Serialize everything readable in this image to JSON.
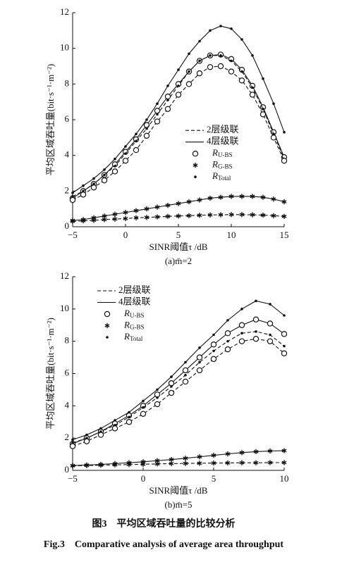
{
  "chart_data": [
    {
      "type": "line",
      "subtitle": "(a)m̄=2",
      "xlabel": "SINR阈值τ /dB",
      "ylabel": "平均区域吞吐量(bit·s⁻¹·m⁻²)",
      "x": [
        -5,
        -4,
        -3,
        -2,
        -1,
        0,
        1,
        2,
        3,
        4,
        5,
        6,
        7,
        8,
        9,
        10,
        11,
        12,
        13,
        14,
        15
      ],
      "xlim": [
        -5,
        15
      ],
      "xticks": [
        {
          "value": -5,
          "label": "−5"
        },
        0,
        5,
        10,
        15
      ],
      "ylim": [
        0,
        12
      ],
      "yticks": [
        0,
        2,
        4,
        6,
        8,
        10,
        12
      ],
      "legend_position": "center-right",
      "legend": [
        {
          "label": "2层级联",
          "linestyle": "dashed"
        },
        {
          "label": "4层级联",
          "linestyle": "solid"
        },
        {
          "label": "R",
          "subscript": "U-BS",
          "marker": "circle"
        },
        {
          "label": "R",
          "subscript": "G-BS",
          "marker": "star"
        },
        {
          "label": "R",
          "subscript": "Total",
          "marker": "dot"
        }
      ],
      "series": [
        {
          "linestyle": "solid",
          "marker": "dot",
          "color": "#111",
          "values": [
            1.9,
            2.3,
            2.7,
            3.2,
            3.8,
            4.5,
            5.2,
            6.0,
            6.9,
            7.9,
            8.8,
            9.7,
            10.4,
            11.0,
            11.25,
            11.1,
            10.5,
            9.6,
            8.3,
            6.9,
            5.3
          ]
        },
        {
          "linestyle": "solid",
          "marker": "circle",
          "color": "#111",
          "values": [
            1.6,
            2.0,
            2.4,
            2.9,
            3.5,
            4.2,
            4.9,
            5.7,
            6.5,
            7.3,
            8.0,
            8.7,
            9.3,
            9.6,
            9.65,
            9.4,
            8.8,
            7.9,
            6.7,
            5.3,
            3.9
          ]
        },
        {
          "linestyle": "dashed",
          "marker": "dot",
          "color": "#111",
          "values": [
            1.7,
            2.0,
            2.4,
            2.9,
            3.4,
            4.1,
            4.8,
            5.5,
            6.3,
            7.1,
            7.9,
            8.7,
            9.3,
            9.6,
            9.6,
            9.3,
            8.7,
            7.8,
            6.6,
            5.2,
            3.8
          ]
        },
        {
          "linestyle": "dashed",
          "marker": "circle",
          "color": "#111",
          "values": [
            1.5,
            1.8,
            2.2,
            2.6,
            3.1,
            3.7,
            4.3,
            5.1,
            5.9,
            6.6,
            7.4,
            8.0,
            8.6,
            8.95,
            9.0,
            8.7,
            8.2,
            7.4,
            6.3,
            5.0,
            3.7
          ]
        },
        {
          "linestyle": "solid",
          "marker": "star",
          "color": "#111",
          "values": [
            0.35,
            0.4,
            0.5,
            0.6,
            0.7,
            0.8,
            0.9,
            1.0,
            1.1,
            1.2,
            1.3,
            1.4,
            1.5,
            1.6,
            1.65,
            1.7,
            1.7,
            1.7,
            1.65,
            1.55,
            1.4
          ]
        },
        {
          "linestyle": "dashed",
          "marker": "star",
          "color": "#111",
          "values": [
            0.3,
            0.33,
            0.36,
            0.4,
            0.43,
            0.46,
            0.5,
            0.52,
            0.55,
            0.58,
            0.6,
            0.62,
            0.64,
            0.66,
            0.67,
            0.68,
            0.68,
            0.67,
            0.65,
            0.62,
            0.58
          ]
        }
      ]
    },
    {
      "type": "line",
      "subtitle": "(b)m̄=5",
      "xlabel": "SINR阈值τ /dB",
      "ylabel": "平均区域吞吐量(bit·s⁻¹·m⁻²)",
      "x": [
        -5,
        -4,
        -3,
        -2,
        -1,
        0,
        1,
        2,
        3,
        4,
        5,
        6,
        7,
        8,
        9,
        10
      ],
      "xlim": [
        -5,
        10
      ],
      "xticks": [
        {
          "value": -5,
          "label": "−5"
        },
        0,
        5,
        10
      ],
      "ylim": [
        0,
        12
      ],
      "yticks": [
        0,
        2,
        4,
        6,
        8,
        10,
        12
      ],
      "legend_position": "upper-left",
      "legend": [
        {
          "label": "2层级联",
          "linestyle": "dashed"
        },
        {
          "label": "4层级联",
          "linestyle": "solid"
        },
        {
          "label": "R",
          "subscript": "U-BS",
          "marker": "circle"
        },
        {
          "label": "R",
          "subscript": "G-BS",
          "marker": "star"
        },
        {
          "label": "R",
          "subscript": "Total",
          "marker": "dot"
        }
      ],
      "series": [
        {
          "linestyle": "solid",
          "marker": "dot",
          "color": "#111",
          "values": [
            1.9,
            2.2,
            2.6,
            3.1,
            3.6,
            4.3,
            5.0,
            5.8,
            6.7,
            7.6,
            8.4,
            9.3,
            10.0,
            10.5,
            10.3,
            9.6
          ]
        },
        {
          "linestyle": "solid",
          "marker": "circle",
          "color": "#111",
          "values": [
            1.65,
            2.0,
            2.4,
            2.9,
            3.4,
            4.0,
            4.7,
            5.4,
            6.2,
            7.0,
            7.8,
            8.5,
            9.0,
            9.35,
            9.1,
            8.45
          ]
        },
        {
          "linestyle": "dashed",
          "marker": "dot",
          "color": "#111",
          "values": [
            1.7,
            2.0,
            2.4,
            2.8,
            3.3,
            3.9,
            4.5,
            5.2,
            5.9,
            6.7,
            7.4,
            8.0,
            8.5,
            8.6,
            8.4,
            7.7
          ]
        },
        {
          "linestyle": "dashed",
          "marker": "circle",
          "color": "#111",
          "values": [
            1.5,
            1.8,
            2.2,
            2.6,
            3.0,
            3.5,
            4.1,
            4.8,
            5.5,
            6.2,
            6.9,
            7.5,
            8.0,
            8.15,
            8.0,
            7.25
          ]
        },
        {
          "linestyle": "solid",
          "marker": "star",
          "color": "#111",
          "values": [
            0.3,
            0.33,
            0.37,
            0.42,
            0.47,
            0.53,
            0.6,
            0.67,
            0.75,
            0.84,
            0.93,
            1.02,
            1.1,
            1.16,
            1.2,
            1.22
          ]
        },
        {
          "linestyle": "dashed",
          "marker": "star",
          "color": "#111",
          "values": [
            0.28,
            0.3,
            0.32,
            0.34,
            0.36,
            0.38,
            0.4,
            0.42,
            0.43,
            0.44,
            0.45,
            0.46,
            0.47,
            0.47,
            0.48,
            0.48
          ]
        }
      ]
    }
  ],
  "figure_caption": {
    "zh": "图3　平均区域吞吐量的比较分析",
    "en": "Fig.3　Comparative analysis of average area throughput"
  }
}
